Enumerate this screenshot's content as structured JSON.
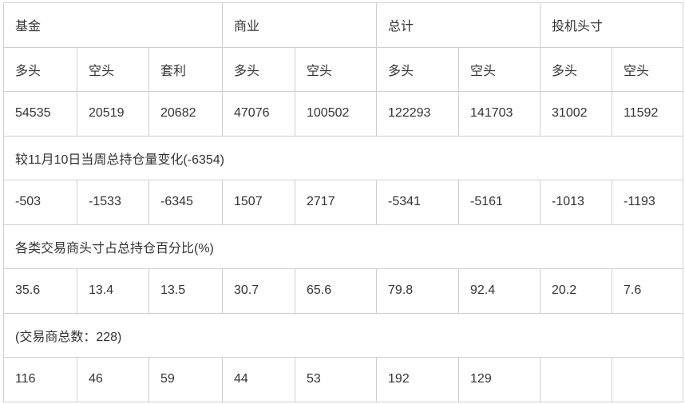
{
  "groups": [
    "基金",
    "商业",
    "总计",
    "投机头寸"
  ],
  "subheaders": [
    "多头",
    "空头",
    "套利",
    "多头",
    "空头",
    "多头",
    "空头",
    "多头",
    "空头"
  ],
  "positions": [
    "54535",
    "20519",
    "20682",
    "47076",
    "100502",
    "122293",
    "141703",
    "31002",
    "11592"
  ],
  "change_title": "较11月10日当周总持仓量变化(-6354)",
  "changes": [
    "-503",
    "-1533",
    "-6345",
    "1507",
    "2717",
    "-5341",
    "-5161",
    "-1013",
    "-1193"
  ],
  "pct_title": "各类交易商头寸占总持仓百分比(%)",
  "percents": [
    "35.6",
    "13.4",
    "13.5",
    "30.7",
    "65.6",
    "79.8",
    "92.4",
    "20.2",
    "7.6"
  ],
  "traders_title": "(交易商总数：228)",
  "traders": [
    "116",
    "46",
    "59",
    "44",
    "53",
    "192",
    "129",
    "",
    ""
  ]
}
